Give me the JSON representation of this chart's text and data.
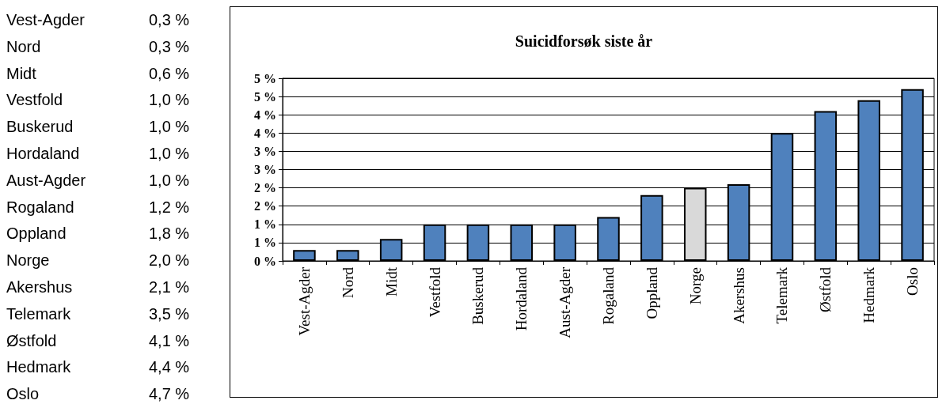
{
  "chart_data": [
    {
      "type": "other",
      "annotations": [
        "Vest-Agder",
        "0,3 %",
        "Nord",
        "0,3 %",
        "Midt",
        "0,6 %",
        "Vestfold",
        "1,0 %",
        "Buskerud",
        "1,0 %",
        "Hordaland",
        "1,0 %",
        "Aust-Agder",
        "1,0 %",
        "Rogaland",
        "1,2 %",
        "Oppland",
        "1,8 %",
        "Norge",
        "2,0 %",
        "Akershus",
        "2,1 %",
        "Telemark",
        "3,5 %",
        "Østfold",
        "4,1 %",
        "Hedmark",
        "4,4 %",
        "Oslo",
        "4,7 %"
      ]
    },
    {
      "type": "bar",
      "title": "Suicidforsøk siste år",
      "categories": [
        "Vest-Agder",
        "Nord",
        "Midt",
        "Vestfold",
        "Buskerud",
        "Hordaland",
        "Aust-Agder",
        "Rogaland",
        "Oppland",
        "Norge",
        "Akershus",
        "Telemark",
        "Østfold",
        "Hedmark",
        "Oslo"
      ],
      "values": [
        0.3,
        0.3,
        0.6,
        1.0,
        1.0,
        1.0,
        1.0,
        1.2,
        1.8,
        2.0,
        2.1,
        3.5,
        4.1,
        4.4,
        4.7
      ],
      "colors": [
        "#4f81bd",
        "#4f81bd",
        "#4f81bd",
        "#4f81bd",
        "#4f81bd",
        "#4f81bd",
        "#4f81bd",
        "#4f81bd",
        "#4f81bd",
        "#d9d9d9",
        "#4f81bd",
        "#4f81bd",
        "#4f81bd",
        "#4f81bd",
        "#4f81bd"
      ],
      "ylim": [
        0,
        5
      ],
      "yticks": [
        {
          "value": 0,
          "label": "0 %"
        },
        {
          "value": 0.5,
          "label": "1 %"
        },
        {
          "value": 1,
          "label": "1 %"
        },
        {
          "value": 1.5,
          "label": "2 %"
        },
        {
          "value": 2,
          "label": "2 %"
        },
        {
          "value": 2.5,
          "label": "3 %"
        },
        {
          "value": 3,
          "label": "3 %"
        },
        {
          "value": 3.5,
          "label": "4 %"
        },
        {
          "value": 4,
          "label": "4 %"
        },
        {
          "value": 4.5,
          "label": "5 %"
        },
        {
          "value": 5,
          "label": "5 %"
        }
      ],
      "grid": "y"
    }
  ]
}
